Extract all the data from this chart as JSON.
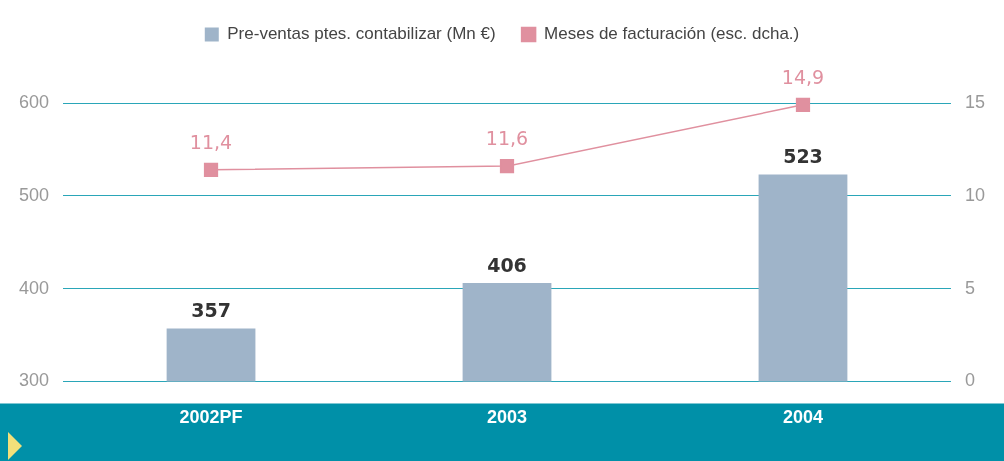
{
  "chart_data": {
    "type": "bar",
    "categories": [
      "2002PF",
      "2003",
      "2004"
    ],
    "series": [
      {
        "name": "Pre-ventas ptes. contabilizar (Mn €)",
        "color": "#9fb4c9",
        "values": [
          357,
          406,
          523
        ],
        "value_labels": [
          "357",
          "406",
          "523"
        ]
      },
      {
        "name": "Meses de facturación (esc. dcha.)",
        "type": "line",
        "axis": "y2",
        "color": "#e0909f",
        "values": [
          11.4,
          11.6,
          14.9
        ],
        "value_labels": [
          "11,4",
          "11,6",
          "14,9"
        ],
        "marker": "square"
      }
    ],
    "ylim": [
      300,
      600
    ],
    "yticks": [
      300,
      400,
      500,
      600
    ],
    "y2lim": [
      0,
      15
    ],
    "y2ticks": [
      0,
      5,
      10,
      15
    ],
    "grid": "y",
    "legend": "top"
  }
}
